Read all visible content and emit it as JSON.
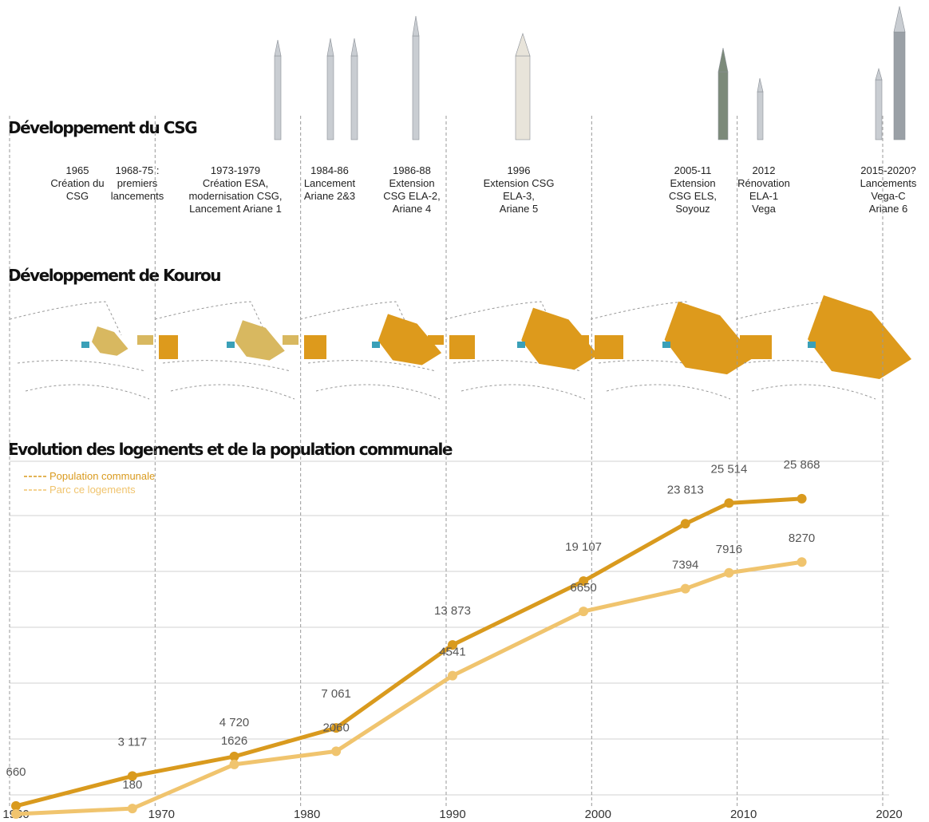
{
  "sections": {
    "csg_title": "Développement du CSG",
    "kourou_title": "Développement de Kourou",
    "events": [
      {
        "lines": [
          "1965",
          "Création du",
          "CSG"
        ]
      },
      {
        "lines": [
          "1968-75 :",
          "premiers",
          "lancements"
        ]
      },
      {
        "lines": [
          "1973-1979",
          "Création ESA,",
          "modernisation CSG,",
          "Lancement Ariane 1"
        ]
      },
      {
        "lines": [
          "1984-86",
          "Lancement",
          "Ariane 2&3"
        ]
      },
      {
        "lines": [
          "1986-88",
          "Extension",
          "CSG ELA-2,",
          "Ariane 4"
        ]
      },
      {
        "lines": [
          "1996",
          "Extension CSG",
          "ELA-3,",
          "Ariane 5"
        ]
      },
      {
        "lines": [
          "2005-11",
          "Extension",
          "CSG ELS,",
          "Soyouz"
        ]
      },
      {
        "lines": [
          "2012",
          "Rénovation",
          "ELA-1",
          "Vega"
        ]
      },
      {
        "lines": [
          "2015-2020?",
          "Lancements",
          "Vega-C",
          "Ariane 6"
        ]
      }
    ]
  },
  "chart_data": {
    "type": "line",
    "title": "Evolution des logements et de la population communale",
    "x": [
      1960,
      1968,
      1975,
      1982,
      1990,
      1999,
      2006,
      2009,
      2014
    ],
    "xlim": [
      1960,
      2020
    ],
    "xticks": [
      1960,
      1970,
      1980,
      1990,
      2000,
      2010,
      2020
    ],
    "ylim": [
      0,
      27500
    ],
    "y2lim": [
      0,
      11000
    ],
    "series": [
      {
        "name": "Population communale",
        "color": "#d99a1e",
        "values": [
          660,
          3117,
          4720,
          7061,
          13873,
          19107,
          23813,
          25514,
          25868
        ],
        "value_labels": [
          "660",
          "3 117",
          "4 720",
          "7 061",
          "13 873",
          "19 107",
          "23 813",
          "25 514",
          "25 868"
        ]
      },
      {
        "name": "Parc ce logements",
        "color": "#f0c46e",
        "axis": "y2",
        "values": [
          0,
          180,
          1626,
          2060,
          4541,
          6650,
          7394,
          7916,
          8270
        ],
        "value_labels": [
          null,
          "180",
          "1626",
          "2060",
          "4541",
          "6650",
          "7394",
          "7916",
          "8270"
        ]
      }
    ]
  }
}
